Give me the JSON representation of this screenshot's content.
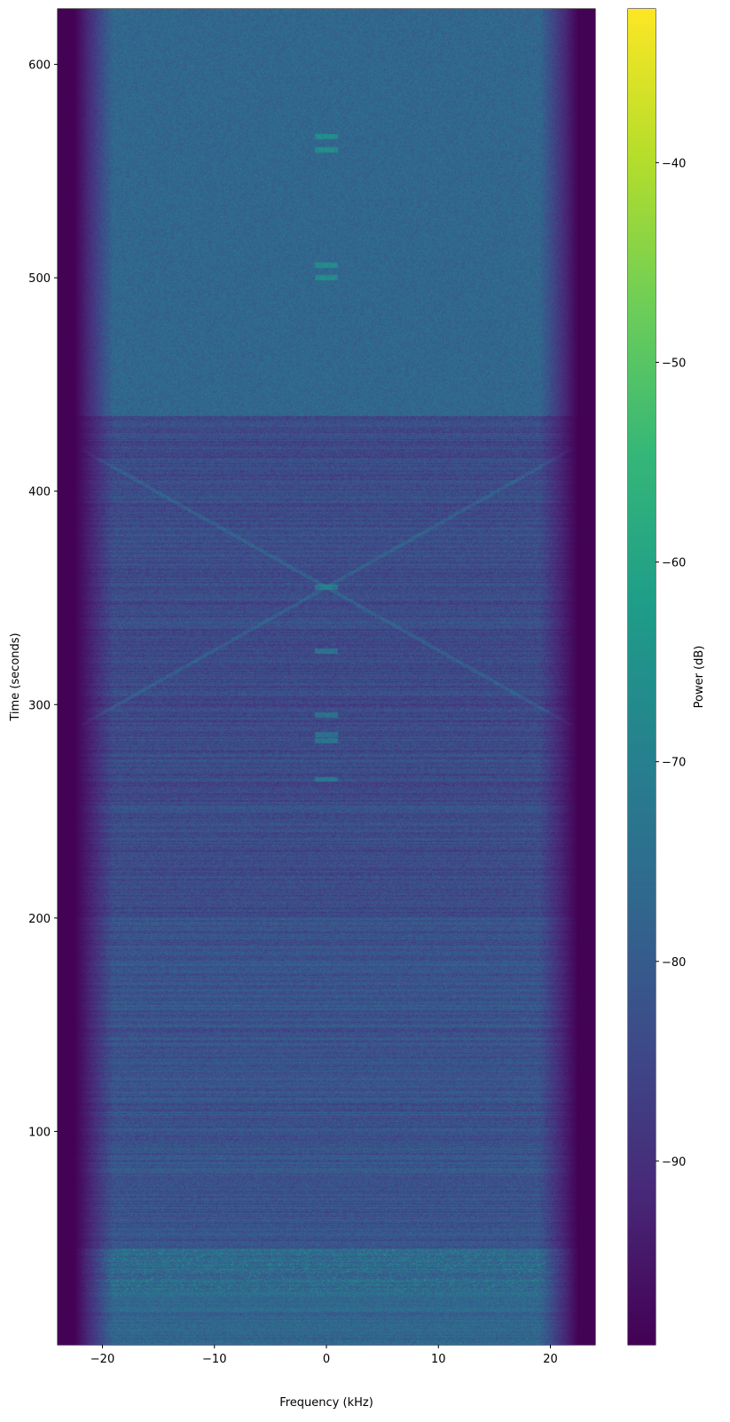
{
  "chart_data": {
    "type": "heatmap",
    "title": "",
    "xlabel": "Frequency (kHz)",
    "ylabel": "Time (seconds)",
    "colorbar_label": "Power (dB)",
    "colormap": "viridis",
    "xlim": [
      -24,
      24
    ],
    "ylim": [
      0,
      626
    ],
    "clim": [
      -99.2,
      -32.3
    ],
    "xticks": [
      -20,
      -10,
      0,
      10,
      20
    ],
    "xtick_labels": [
      "−20",
      "−10",
      "0",
      "10",
      "20"
    ],
    "yticks": [
      100,
      200,
      300,
      400,
      500,
      600
    ],
    "ytick_labels": [
      "100",
      "200",
      "300",
      "400",
      "500",
      "600"
    ],
    "cbar_ticks": [
      -40,
      -50,
      -60,
      -70,
      -80,
      -90
    ],
    "cbar_tick_labels": [
      "−40",
      "−50",
      "−60",
      "−70",
      "−80",
      "−90"
    ],
    "grid": false,
    "features": {
      "noise_floor_db_after_435s": -77,
      "noise_floor_db_before_435s": -84,
      "band_edge_rolloff_khz": 19,
      "outside_band_db": -99,
      "strong_burst_time_range_s": [
        0,
        45
      ],
      "center_tones_s": [
        265,
        283,
        286,
        295,
        325,
        355,
        500,
        506,
        560,
        566
      ]
    }
  }
}
